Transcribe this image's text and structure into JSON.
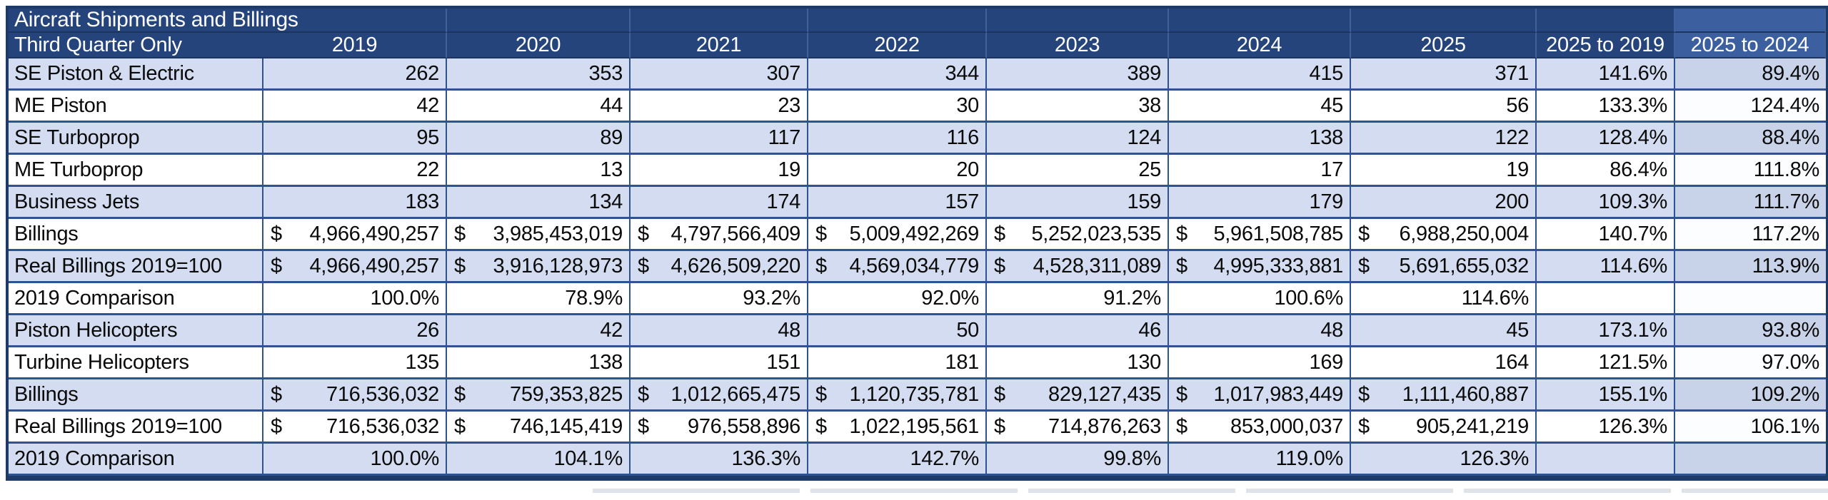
{
  "table": {
    "title": "Aircraft Shipments and Billings",
    "corner_label": "Third Quarter Only",
    "columns": [
      "2019",
      "2020",
      "2021",
      "2022",
      "2023",
      "2024",
      "2025",
      "2025 to 2019",
      "2025 to 2024"
    ],
    "highlighted_column": "2025 to 2024",
    "rows": [
      {
        "label": "SE Piston & Electric",
        "format": "integer",
        "banded": true,
        "values": [
          "262",
          "353",
          "307",
          "344",
          "389",
          "415",
          "371",
          "141.6%",
          "89.4%"
        ]
      },
      {
        "label": "ME Piston",
        "format": "integer",
        "banded": false,
        "values": [
          "42",
          "44",
          "23",
          "30",
          "38",
          "45",
          "56",
          "133.3%",
          "124.4%"
        ]
      },
      {
        "label": "SE Turboprop",
        "format": "integer",
        "banded": true,
        "values": [
          "95",
          "89",
          "117",
          "116",
          "124",
          "138",
          "122",
          "128.4%",
          "88.4%"
        ]
      },
      {
        "label": "ME Turboprop",
        "format": "integer",
        "banded": false,
        "values": [
          "22",
          "13",
          "19",
          "20",
          "25",
          "17",
          "19",
          "86.4%",
          "111.8%"
        ]
      },
      {
        "label": "Business Jets",
        "format": "integer",
        "banded": true,
        "values": [
          "183",
          "134",
          "174",
          "157",
          "159",
          "179",
          "200",
          "109.3%",
          "111.7%"
        ]
      },
      {
        "label": "Billings",
        "format": "currency",
        "banded": false,
        "values": [
          "$4,966,490,257",
          "$3,985,453,019",
          "$4,797,566,409",
          "$5,009,492,269",
          "$5,252,023,535",
          "$5,961,508,785",
          "$6,988,250,004",
          "140.7%",
          "117.2%"
        ]
      },
      {
        "label": "Real Billings 2019=100",
        "format": "currency",
        "banded": true,
        "values": [
          "$4,966,490,257",
          "$3,916,128,973",
          "$4,626,509,220",
          "$4,569,034,779",
          "$4,528,311,089",
          "$4,995,333,881",
          "$5,691,655,032",
          "114.6%",
          "113.9%"
        ]
      },
      {
        "label": "2019 Comparison",
        "format": "percent",
        "banded": false,
        "values": [
          "100.0%",
          "78.9%",
          "93.2%",
          "92.0%",
          "91.2%",
          "100.6%",
          "114.6%",
          "",
          ""
        ]
      },
      {
        "label": "Piston Helicopters",
        "format": "integer",
        "banded": true,
        "values": [
          "26",
          "42",
          "48",
          "50",
          "46",
          "48",
          "45",
          "173.1%",
          "93.8%"
        ]
      },
      {
        "label": "Turbine Helicopters",
        "format": "integer",
        "banded": false,
        "values": [
          "135",
          "138",
          "151",
          "181",
          "130",
          "169",
          "164",
          "121.5%",
          "97.0%"
        ]
      },
      {
        "label": "Billings",
        "format": "currency",
        "banded": true,
        "values": [
          "$ 716,536,032",
          "$ 759,353,825",
          "$1,012,665,475",
          "$1,120,735,781",
          "$ 829,127,435",
          "$1,017,983,449",
          "$1,111,460,887",
          "155.1%",
          "109.2%"
        ]
      },
      {
        "label": "Real Billings 2019=100",
        "format": "currency",
        "banded": false,
        "values": [
          "$ 716,536,032",
          "$ 746,145,419",
          "$ 976,558,896",
          "$1,022,195,561",
          "$ 714,876,263",
          "$ 853,000,037",
          "$ 905,241,219",
          "126.3%",
          "106.1%"
        ]
      },
      {
        "label": "2019 Comparison",
        "format": "percent",
        "banded": true,
        "values": [
          "100.0%",
          "104.1%",
          "136.3%",
          "142.7%",
          "99.8%",
          "119.0%",
          "126.3%",
          "",
          ""
        ]
      }
    ],
    "colors": {
      "header_background": "#25447c",
      "header_highlighted_background": "#3c5fa0",
      "banded_row_background": "#d3dcf0",
      "banded_highlighted_background": "#c8d3e9",
      "grid_border": "#2f5291",
      "outer_border": "#1e3a66",
      "header_text": "#ffffff",
      "data_text": "#0a0a0a"
    }
  }
}
